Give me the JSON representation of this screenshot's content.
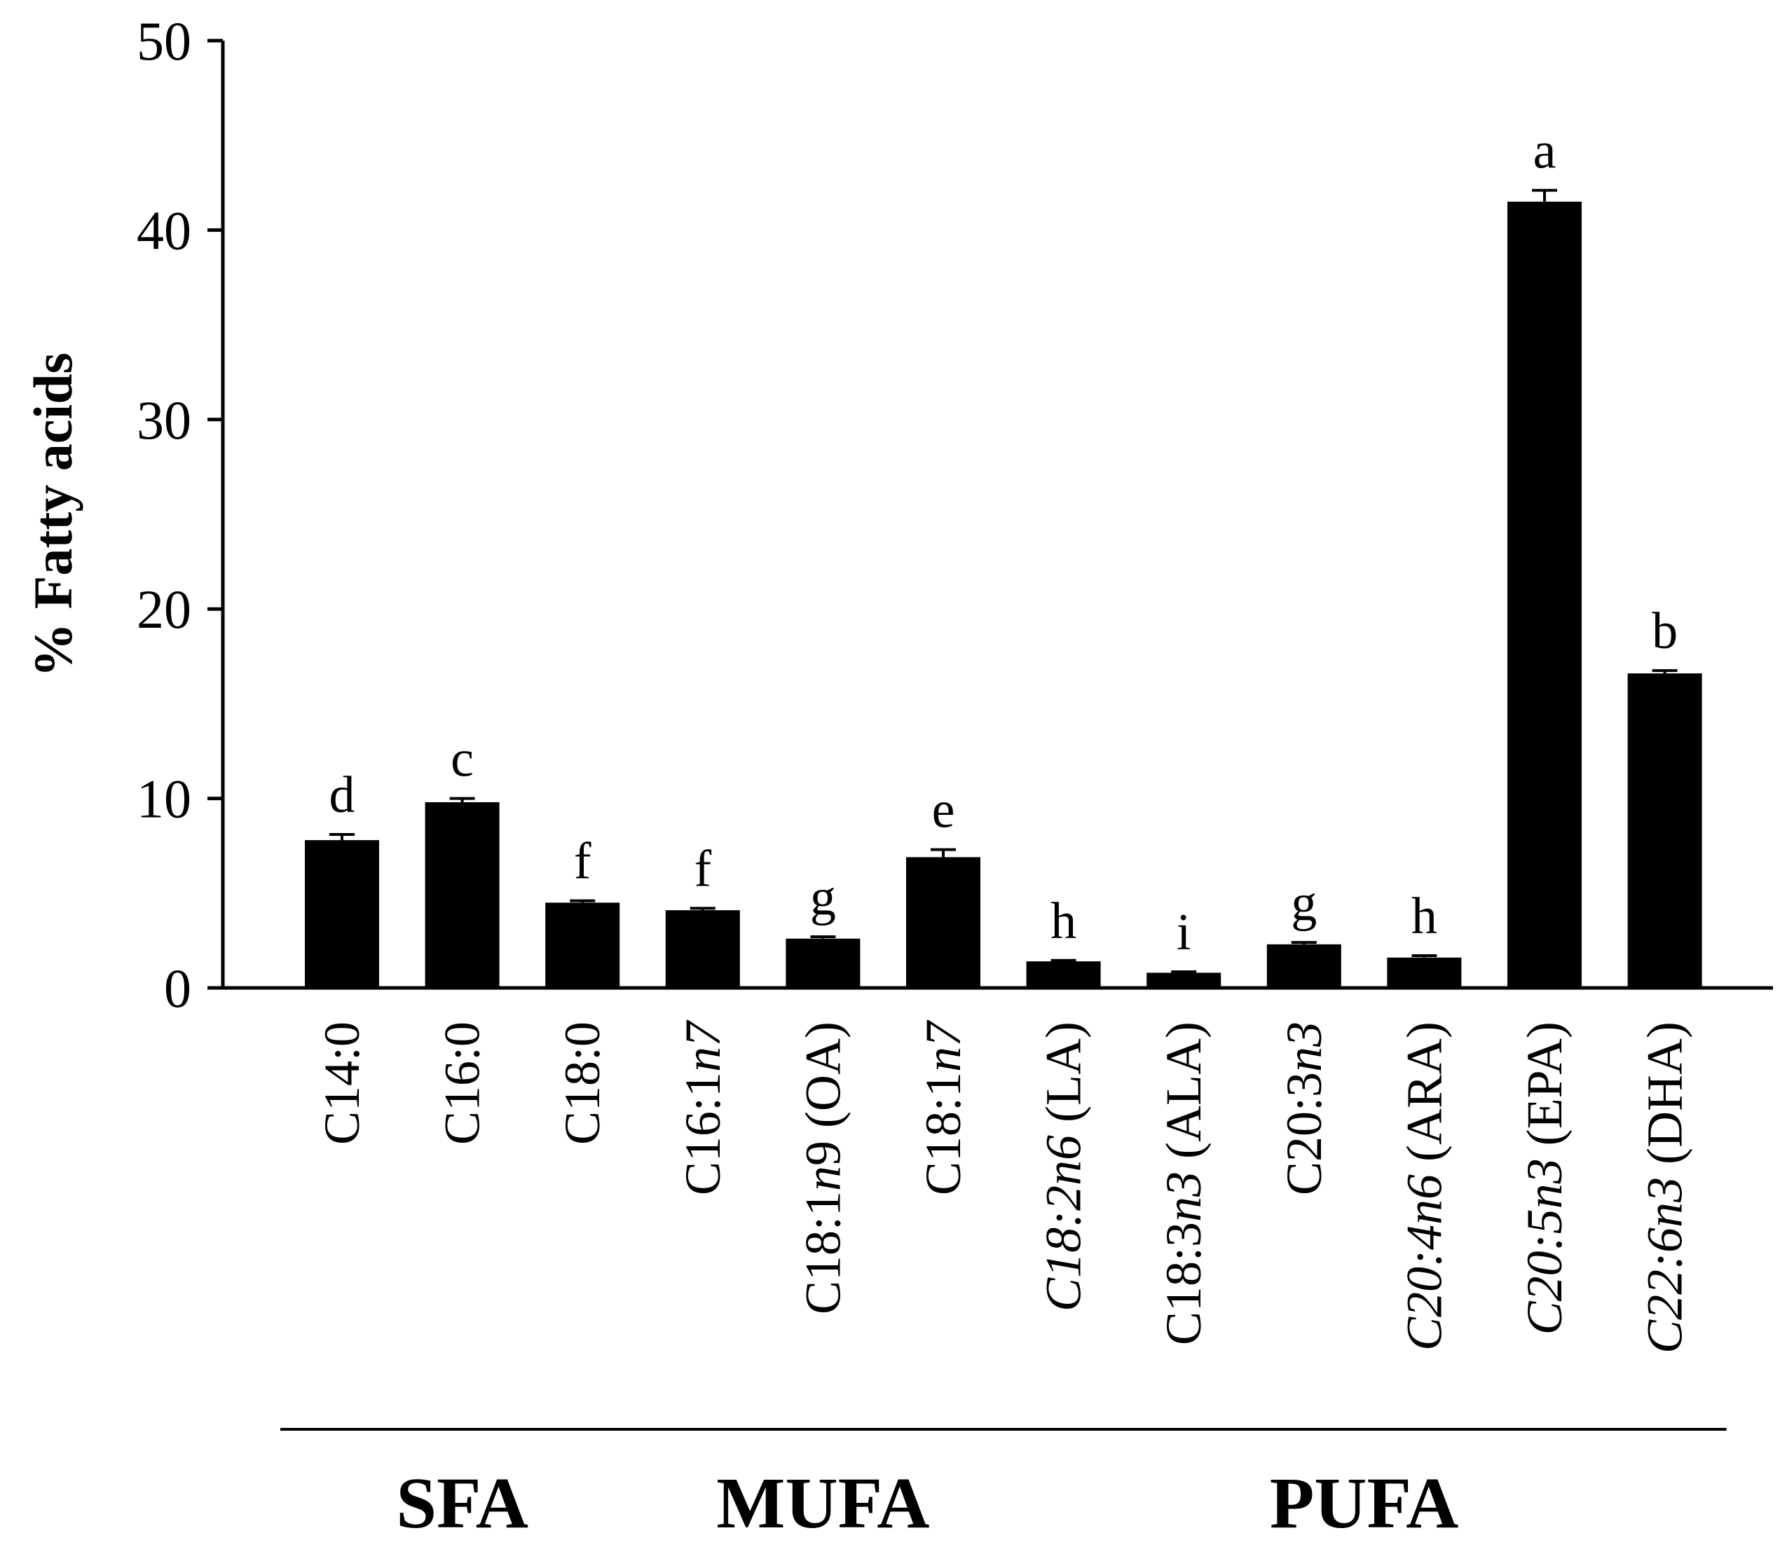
{
  "chart_data": {
    "type": "bar",
    "title": "",
    "xlabel": "",
    "ylabel": "% Fatty acids",
    "ylim": [
      0,
      50
    ],
    "yticks": [
      0,
      10,
      20,
      30,
      40,
      50
    ],
    "grid": false,
    "bar_color": "#000000",
    "categories": [
      {
        "label": "C14:0",
        "parts": [
          {
            "t": "C14:0"
          }
        ]
      },
      {
        "label": "C16:0",
        "parts": [
          {
            "t": "C16:0"
          }
        ]
      },
      {
        "label": "C18:0",
        "parts": [
          {
            "t": "C18:0"
          }
        ]
      },
      {
        "label": "C16:1n7",
        "parts": [
          {
            "t": "C16:1"
          },
          {
            "t": "n",
            "i": true
          },
          {
            "t": "7",
            "i": true
          }
        ]
      },
      {
        "label": "C18:1n9 (OA)",
        "parts": [
          {
            "t": "C18:1"
          },
          {
            "t": "n",
            "i": true
          },
          {
            "t": "9 (OA)"
          }
        ]
      },
      {
        "label": "C18:1n7",
        "parts": [
          {
            "t": "C18:1"
          },
          {
            "t": "n7",
            "i": true
          }
        ]
      },
      {
        "label": "C18:2n6 (LA)",
        "parts": [
          {
            "t": "C18:2",
            "i": true
          },
          {
            "t": "n6",
            "i": true
          },
          {
            "t": " (LA)"
          }
        ]
      },
      {
        "label": "C18:3n3 (ALA)",
        "parts": [
          {
            "t": "C18:3"
          },
          {
            "t": "n3",
            "i": true
          },
          {
            "t": " (ALA)"
          }
        ]
      },
      {
        "label": "C20:3n3",
        "parts": [
          {
            "t": "C20:3"
          },
          {
            "t": "n3",
            "i": true
          }
        ]
      },
      {
        "label": "C20:4n6 (ARA)",
        "parts": [
          {
            "t": "C20:4",
            "i": true
          },
          {
            "t": "n6",
            "i": true
          },
          {
            "t": " (ARA)"
          }
        ]
      },
      {
        "label": "C20:5n3 (EPA)",
        "parts": [
          {
            "t": "C20:5",
            "i": true
          },
          {
            "t": "n3",
            "i": true
          },
          {
            "t": " (EPA)"
          }
        ]
      },
      {
        "label": "C22:6n3 (DHA)",
        "parts": [
          {
            "t": "C22:6",
            "i": true
          },
          {
            "t": "n3",
            "i": true
          },
          {
            "t": " (DHA)"
          }
        ]
      }
    ],
    "values": [
      7.8,
      9.8,
      4.5,
      4.1,
      2.6,
      6.9,
      1.4,
      0.8,
      2.3,
      1.6,
      41.5,
      16.6
    ],
    "errors": [
      0.3,
      0.2,
      0.1,
      0.1,
      0.1,
      0.4,
      0.05,
      0.05,
      0.1,
      0.1,
      0.6,
      0.15
    ],
    "significance": [
      "d",
      "c",
      "f",
      "f",
      "g",
      "e",
      "h",
      "i",
      "g",
      "h",
      "a",
      "b"
    ],
    "groups": [
      {
        "label": "SFA",
        "start": 0,
        "end": 2
      },
      {
        "label": "MUFA",
        "start": 3,
        "end": 5
      },
      {
        "label": "PUFA",
        "start": 6,
        "end": 11
      }
    ]
  }
}
